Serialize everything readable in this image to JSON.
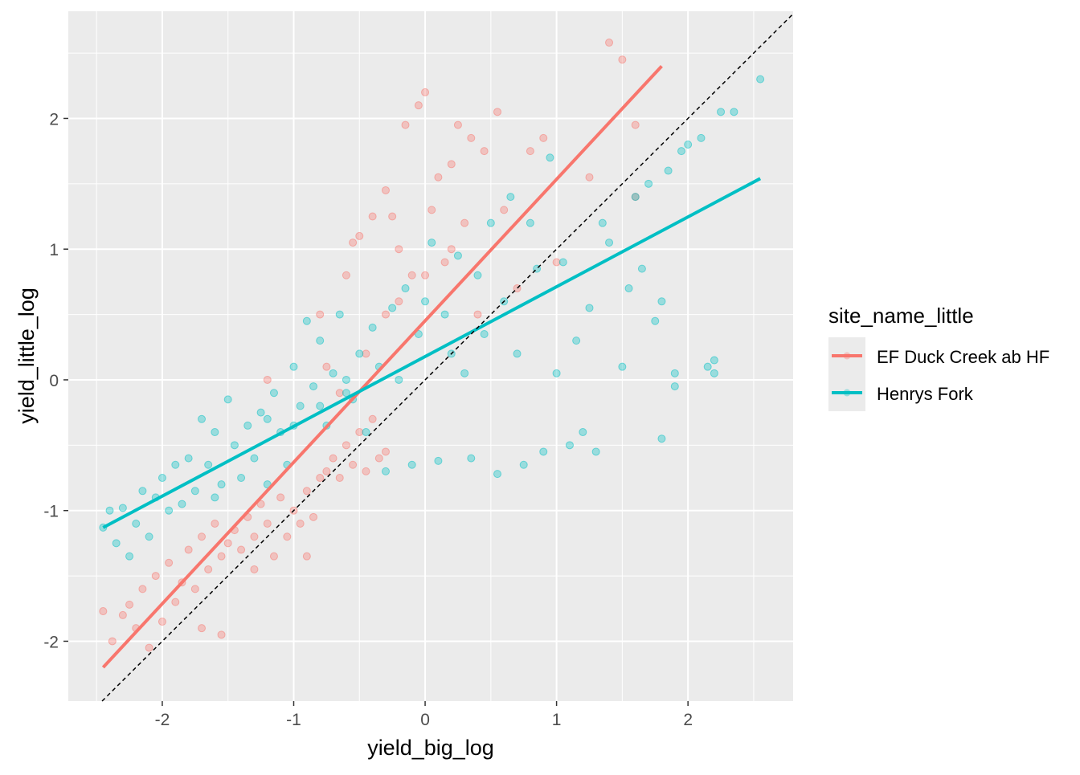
{
  "chart_data": {
    "type": "scatter",
    "xlabel": "yield_big_log",
    "ylabel": "yield_little_log",
    "xlim": [
      -2.715,
      2.8
    ],
    "ylim": [
      -2.458,
      2.82
    ],
    "xticks": [
      -2,
      -1,
      0,
      1,
      2
    ],
    "yticks": [
      -2,
      -1,
      0,
      1,
      2
    ],
    "grid": true,
    "reference_line": {
      "type": "identity",
      "style": "dashed",
      "color": "#000000"
    },
    "legend": {
      "title": "site_name_little",
      "placement": "right",
      "entries": [
        "EF Duck Creek ab HF",
        "Henrys Fork"
      ]
    },
    "series": [
      {
        "name": "EF Duck Creek ab HF",
        "color": "#F8766D",
        "fit_line": [
          [
            -2.45,
            -2.2
          ],
          [
            1.8,
            2.4
          ]
        ],
        "points": [
          [
            -2.45,
            -1.77
          ],
          [
            -2.38,
            -2.0
          ],
          [
            -2.3,
            -1.8
          ],
          [
            -2.25,
            -1.72
          ],
          [
            -2.2,
            -1.9
          ],
          [
            -2.15,
            -1.6
          ],
          [
            -2.1,
            -2.05
          ],
          [
            -2.05,
            -1.5
          ],
          [
            -2.0,
            -1.85
          ],
          [
            -1.95,
            -1.4
          ],
          [
            -1.9,
            -1.7
          ],
          [
            -1.85,
            -1.55
          ],
          [
            -1.8,
            -1.3
          ],
          [
            -1.75,
            -1.6
          ],
          [
            -1.7,
            -1.2
          ],
          [
            -1.65,
            -1.45
          ],
          [
            -1.6,
            -1.1
          ],
          [
            -1.55,
            -1.35
          ],
          [
            -1.5,
            -1.25
          ],
          [
            -1.45,
            -1.15
          ],
          [
            -1.4,
            -1.3
          ],
          [
            -1.35,
            -1.05
          ],
          [
            -1.3,
            -1.2
          ],
          [
            -1.25,
            -0.95
          ],
          [
            -1.2,
            -1.1
          ],
          [
            -1.15,
            -1.35
          ],
          [
            -1.1,
            -0.9
          ],
          [
            -1.05,
            -1.2
          ],
          [
            -1.0,
            -1.0
          ],
          [
            -0.95,
            -1.1
          ],
          [
            -0.9,
            -0.85
          ],
          [
            -0.85,
            -1.05
          ],
          [
            -0.8,
            -0.75
          ],
          [
            -0.75,
            -0.7
          ],
          [
            -0.7,
            -0.6
          ],
          [
            -0.65,
            -0.75
          ],
          [
            -0.6,
            -0.5
          ],
          [
            -0.55,
            -0.65
          ],
          [
            -0.5,
            -0.4
          ],
          [
            -0.45,
            -0.7
          ],
          [
            -0.4,
            -0.3
          ],
          [
            -0.35,
            -0.6
          ],
          [
            -0.3,
            -0.55
          ],
          [
            -0.8,
            0.5
          ],
          [
            -0.75,
            0.1
          ],
          [
            -0.6,
            0.8
          ],
          [
            -0.55,
            1.05
          ],
          [
            -0.5,
            1.1
          ],
          [
            -0.45,
            0.2
          ],
          [
            -0.4,
            1.25
          ],
          [
            -0.3,
            1.45
          ],
          [
            -0.25,
            1.25
          ],
          [
            -0.2,
            1.0
          ],
          [
            -0.15,
            1.95
          ],
          [
            -0.1,
            0.8
          ],
          [
            -0.05,
            2.1
          ],
          [
            0.0,
            2.2
          ],
          [
            0.05,
            1.3
          ],
          [
            0.1,
            1.55
          ],
          [
            0.15,
            0.9
          ],
          [
            0.2,
            1.65
          ],
          [
            0.25,
            1.95
          ],
          [
            0.3,
            1.2
          ],
          [
            0.35,
            1.85
          ],
          [
            0.4,
            0.5
          ],
          [
            0.45,
            1.75
          ],
          [
            0.55,
            2.05
          ],
          [
            0.6,
            1.3
          ],
          [
            0.7,
            0.7
          ],
          [
            0.8,
            1.75
          ],
          [
            0.9,
            1.85
          ],
          [
            1.0,
            0.9
          ],
          [
            1.25,
            1.55
          ],
          [
            1.4,
            2.58
          ],
          [
            1.5,
            2.45
          ],
          [
            1.6,
            1.95
          ],
          [
            1.6,
            1.4
          ],
          [
            -0.65,
            -0.1
          ],
          [
            -0.3,
            0.5
          ],
          [
            -0.2,
            0.6
          ],
          [
            0.0,
            0.8
          ],
          [
            0.2,
            1.0
          ],
          [
            -1.2,
            0.0
          ],
          [
            -1.7,
            -1.9
          ],
          [
            -1.55,
            -1.95
          ],
          [
            -1.3,
            -1.45
          ],
          [
            -0.9,
            -1.35
          ]
        ]
      },
      {
        "name": "Henrys Fork",
        "color": "#00BFC4",
        "fit_line": [
          [
            -2.45,
            -1.13
          ],
          [
            2.55,
            1.54
          ]
        ],
        "points": [
          [
            -2.45,
            -1.13
          ],
          [
            -2.4,
            -1.0
          ],
          [
            -2.35,
            -1.25
          ],
          [
            -2.3,
            -0.98
          ],
          [
            -2.25,
            -1.35
          ],
          [
            -2.2,
            -1.1
          ],
          [
            -2.15,
            -0.85
          ],
          [
            -2.1,
            -1.2
          ],
          [
            -2.05,
            -0.9
          ],
          [
            -2.0,
            -0.75
          ],
          [
            -1.95,
            -1.0
          ],
          [
            -1.9,
            -0.65
          ],
          [
            -1.85,
            -0.95
          ],
          [
            -1.8,
            -0.6
          ],
          [
            -1.75,
            -0.85
          ],
          [
            -1.7,
            -0.3
          ],
          [
            -1.65,
            -0.65
          ],
          [
            -1.6,
            -0.4
          ],
          [
            -1.55,
            -0.8
          ],
          [
            -1.5,
            -0.15
          ],
          [
            -1.45,
            -0.5
          ],
          [
            -1.4,
            -0.75
          ],
          [
            -1.35,
            -0.35
          ],
          [
            -1.3,
            -0.6
          ],
          [
            -1.25,
            -0.25
          ],
          [
            -1.2,
            -0.8
          ],
          [
            -1.15,
            -0.1
          ],
          [
            -1.1,
            -0.4
          ],
          [
            -1.05,
            -0.65
          ],
          [
            -1.0,
            0.1
          ],
          [
            -0.95,
            -0.2
          ],
          [
            -0.9,
            0.45
          ],
          [
            -0.85,
            -0.05
          ],
          [
            -0.8,
            0.3
          ],
          [
            -0.75,
            -0.35
          ],
          [
            -0.7,
            0.05
          ],
          [
            -0.65,
            0.5
          ],
          [
            -0.6,
            0.0
          ],
          [
            -0.55,
            -0.15
          ],
          [
            -0.5,
            0.2
          ],
          [
            -0.45,
            -0.4
          ],
          [
            -0.4,
            0.4
          ],
          [
            -0.35,
            0.1
          ],
          [
            -0.3,
            -0.7
          ],
          [
            -0.25,
            0.55
          ],
          [
            -0.2,
            0.0
          ],
          [
            -0.15,
            0.7
          ],
          [
            -0.1,
            -0.65
          ],
          [
            -0.05,
            0.35
          ],
          [
            0.0,
            0.6
          ],
          [
            0.05,
            1.05
          ],
          [
            0.1,
            -0.62
          ],
          [
            0.15,
            0.5
          ],
          [
            0.2,
            0.2
          ],
          [
            0.25,
            0.95
          ],
          [
            0.3,
            0.05
          ],
          [
            0.35,
            -0.6
          ],
          [
            0.4,
            0.8
          ],
          [
            0.45,
            0.35
          ],
          [
            0.5,
            1.2
          ],
          [
            0.55,
            -0.72
          ],
          [
            0.6,
            0.6
          ],
          [
            0.65,
            1.4
          ],
          [
            0.7,
            0.2
          ],
          [
            0.75,
            -0.65
          ],
          [
            0.8,
            1.2
          ],
          [
            0.85,
            0.85
          ],
          [
            0.9,
            -0.55
          ],
          [
            0.95,
            1.7
          ],
          [
            1.0,
            0.05
          ],
          [
            1.05,
            0.9
          ],
          [
            1.1,
            -0.5
          ],
          [
            1.15,
            0.3
          ],
          [
            1.2,
            -0.4
          ],
          [
            1.25,
            0.55
          ],
          [
            1.3,
            -0.55
          ],
          [
            1.4,
            1.05
          ],
          [
            1.5,
            0.1
          ],
          [
            1.55,
            0.7
          ],
          [
            1.6,
            1.4
          ],
          [
            1.65,
            0.85
          ],
          [
            1.7,
            1.5
          ],
          [
            1.75,
            0.45
          ],
          [
            1.8,
            0.6
          ],
          [
            1.8,
            -0.45
          ],
          [
            1.85,
            1.6
          ],
          [
            1.9,
            0.05
          ],
          [
            1.95,
            1.75
          ],
          [
            2.0,
            1.8
          ],
          [
            2.1,
            1.85
          ],
          [
            2.15,
            0.1
          ],
          [
            2.2,
            0.05
          ],
          [
            2.2,
            0.15
          ],
          [
            2.25,
            2.05
          ],
          [
            2.35,
            2.05
          ],
          [
            2.55,
            2.3
          ],
          [
            -1.6,
            -0.9
          ],
          [
            -1.2,
            -0.3
          ],
          [
            -1.0,
            -0.35
          ],
          [
            -0.8,
            -0.2
          ],
          [
            -0.6,
            -0.1
          ],
          [
            1.35,
            1.2
          ],
          [
            1.9,
            -0.05
          ]
        ]
      }
    ]
  }
}
